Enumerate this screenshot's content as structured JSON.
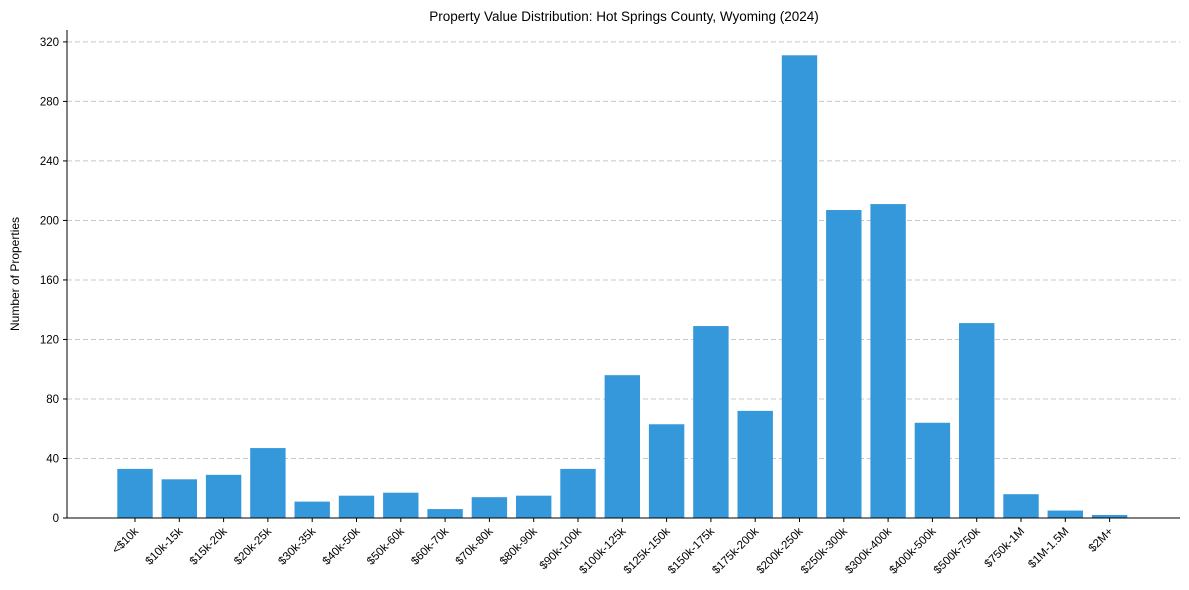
{
  "chart_data": {
    "type": "bar",
    "title": "Property Value Distribution: Hot Springs County, Wyoming (2024)",
    "xlabel": "",
    "ylabel": "Number of Properties",
    "ylim": [
      0,
      328
    ],
    "yticks": [
      0,
      40,
      80,
      120,
      160,
      200,
      240,
      280,
      320
    ],
    "grid": "y-dashed",
    "bar_color": "#3498db",
    "categories": [
      "<$10k",
      "$10k-15k",
      "$15k-20k",
      "$20k-25k",
      "$30k-35k",
      "$40k-50k",
      "$50k-60k",
      "$60k-70k",
      "$70k-80k",
      "$80k-90k",
      "$90k-100k",
      "$100k-125k",
      "$125k-150k",
      "$150k-175k",
      "$175k-200k",
      "$200k-250k",
      "$250k-300k",
      "$300k-400k",
      "$400k-500k",
      "$500k-750k",
      "$750k-1M",
      "$1M-1.5M",
      "$2M+"
    ],
    "values": [
      33,
      26,
      29,
      47,
      11,
      15,
      17,
      6,
      14,
      15,
      33,
      96,
      63,
      129,
      72,
      311,
      207,
      211,
      64,
      131,
      16,
      5,
      2
    ]
  }
}
